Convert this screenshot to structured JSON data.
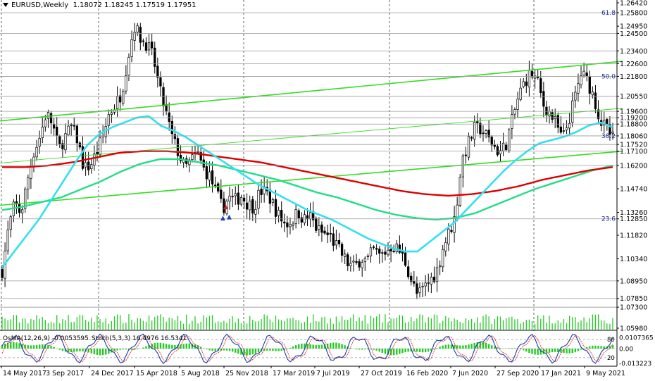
{
  "header": {
    "symbol_timeframe": "EURUSD,Weekly",
    "ohlc": "1.18072 1.18245 1.17519 1.17951"
  },
  "indicator": {
    "osma_label": "OsMA(12,26,9) -0.0053595",
    "stoch_label": "Stoch(5,3,3) 16.4976 16.5341"
  },
  "price_axis": [
    {
      "label": "1.26420",
      "v": 1.2642,
      "hl": false
    },
    {
      "label": "1.25800",
      "v": 1.258,
      "hl": true
    },
    {
      "label": "1.24950",
      "v": 1.2495,
      "hl": false
    },
    {
      "label": "1.24500",
      "v": 1.245,
      "hl": true
    },
    {
      "label": "1.23400",
      "v": 1.234,
      "hl": true
    },
    {
      "label": "1.22600",
      "v": 1.226,
      "hl": true
    },
    {
      "label": "1.21800",
      "v": 1.218,
      "hl": true
    },
    {
      "label": "1.20550",
      "v": 1.2055,
      "hl": true
    },
    {
      "label": "1.19600",
      "v": 1.196,
      "hl": true
    },
    {
      "label": "1.19200",
      "v": 1.192,
      "hl": true
    },
    {
      "label": "1.18800",
      "v": 1.188,
      "hl": true
    },
    {
      "label": "1.18060",
      "v": 1.1806,
      "hl": true
    },
    {
      "label": "1.17520",
      "v": 1.1752,
      "hl": true
    },
    {
      "label": "1.17100",
      "v": 1.171,
      "hl": true
    },
    {
      "label": "1.16200",
      "v": 1.162,
      "hl": true
    },
    {
      "label": "1.14740",
      "v": 1.1474,
      "hl": false
    },
    {
      "label": "1.13260",
      "v": 1.1326,
      "hl": false
    },
    {
      "label": "1.12850",
      "v": 1.1285,
      "hl": true
    },
    {
      "label": "1.11820",
      "v": 1.1182,
      "hl": false
    },
    {
      "label": "1.10340",
      "v": 1.1034,
      "hl": false
    },
    {
      "label": "1.08950",
      "v": 1.0895,
      "hl": true
    },
    {
      "label": "1.07850",
      "v": 1.0785,
      "hl": true
    },
    {
      "label": "1.07300",
      "v": 1.073,
      "hl": true
    },
    {
      "label": "1.05980",
      "v": 1.0598,
      "hl": false
    }
  ],
  "fib_labels": [
    {
      "label": "61.8",
      "v": 1.258
    },
    {
      "label": "50.0",
      "v": 1.218
    },
    {
      "label": "38.2",
      "v": 1.1806
    },
    {
      "label": "23.6",
      "v": 1.1285
    }
  ],
  "indicator_axis": [
    {
      "label": "0.0107365",
      "v": 0.85
    },
    {
      "label": "0.00",
      "v": 0.5
    },
    {
      "label": "-0.013223",
      "v": 0.05
    }
  ],
  "indicator_levels": [
    {
      "label": "80",
      "v": 0.78
    },
    {
      "label": "20",
      "v": 0.22
    }
  ],
  "date_labels": [
    "14 May 2017",
    "3 Sep 2017",
    "24 Dec 2017",
    "15 Apr 2018",
    "5 Aug 2018",
    "25 Nov 2018",
    "17 Mar 2019",
    "7 Jul 2019",
    "27 Oct 2019",
    "16 Feb 2020",
    "7 Jun 2020",
    "27 Sep 2020",
    "17 Jan 2021",
    "9 May 2021"
  ],
  "colors": {
    "bull": "#ffffff",
    "bear": "#000000",
    "ema_fast": "#33e0f0",
    "ema_mid": "#22dd88",
    "ema_slow": "#dd0000",
    "channel": "#33dd22",
    "volume": "#22cc22",
    "hist": "#22cc22",
    "stoch_main": "#1a3aa8",
    "stoch_signal": "#dd3333"
  },
  "chart_data": {
    "type": "candlestick",
    "instrument": "EURUSD",
    "timeframe": "Weekly",
    "ylim": [
      1.0598,
      1.2642
    ],
    "price_anchors": [
      1.096,
      1.122,
      1.138,
      1.132,
      1.152,
      1.17,
      1.18,
      1.195,
      1.188,
      1.172,
      1.18,
      1.186,
      1.178,
      1.16,
      1.162,
      1.17,
      1.18,
      1.195,
      1.2,
      1.208,
      1.23,
      1.25,
      1.242,
      1.238,
      1.23,
      1.21,
      1.195,
      1.18,
      1.17,
      1.16,
      1.165,
      1.17,
      1.16,
      1.155,
      1.145,
      1.135,
      1.142,
      1.14,
      1.143,
      1.138,
      1.136,
      1.146,
      1.145,
      1.138,
      1.13,
      1.125,
      1.127,
      1.133,
      1.128,
      1.13,
      1.122,
      1.119,
      1.118,
      1.112,
      1.106,
      1.1,
      1.098,
      1.104,
      1.102,
      1.109,
      1.105,
      1.108,
      1.112,
      1.109,
      1.102,
      1.09,
      1.08,
      1.085,
      1.09,
      1.095,
      1.11,
      1.12,
      1.13,
      1.165,
      1.175,
      1.185,
      1.185,
      1.18,
      1.175,
      1.17,
      1.175,
      1.19,
      1.205,
      1.215,
      1.22,
      1.215,
      1.2,
      1.195,
      1.188,
      1.178,
      1.19,
      1.205,
      1.22,
      1.215,
      1.205,
      1.19,
      1.185,
      1.179
    ],
    "ema_fast_anchors": [
      1.098,
      1.108,
      1.118,
      1.128,
      1.14,
      1.152,
      1.164,
      1.175,
      1.182,
      1.186,
      1.189,
      1.192,
      1.193,
      1.187,
      1.184,
      1.18,
      1.175,
      1.17,
      1.165,
      1.16,
      1.155,
      1.15,
      1.146,
      1.142,
      1.138,
      1.134,
      1.131,
      1.128,
      1.124,
      1.12,
      1.116,
      1.113,
      1.11,
      1.108,
      1.108,
      1.114,
      1.12,
      1.126,
      1.134,
      1.142,
      1.15,
      1.158,
      1.165,
      1.171,
      1.176,
      1.178,
      1.18,
      1.183,
      1.187,
      1.189,
      1.186
    ],
    "ema_mid_anchors": [
      1.134,
      1.136,
      1.139,
      1.142,
      1.147,
      1.152,
      1.158,
      1.163,
      1.166,
      1.166,
      1.164,
      1.162,
      1.159,
      1.156,
      1.153,
      1.149,
      1.145,
      1.142,
      1.138,
      1.134,
      1.131,
      1.129,
      1.128,
      1.129,
      1.132,
      1.137,
      1.142,
      1.147,
      1.151,
      1.155,
      1.159,
      1.162
    ],
    "ema_slow_anchors": [
      1.161,
      1.161,
      1.162,
      1.164,
      1.167,
      1.17,
      1.171,
      1.171,
      1.17,
      1.168,
      1.166,
      1.164,
      1.161,
      1.158,
      1.155,
      1.152,
      1.149,
      1.146,
      1.144,
      1.143,
      1.144,
      1.146,
      1.149,
      1.153,
      1.156,
      1.159,
      1.161
    ]
  }
}
